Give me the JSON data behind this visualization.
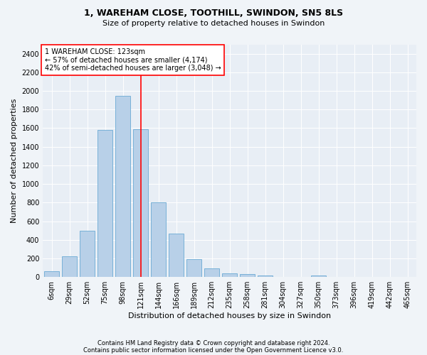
{
  "title1": "1, WAREHAM CLOSE, TOOTHILL, SWINDON, SN5 8LS",
  "title2": "Size of property relative to detached houses in Swindon",
  "xlabel": "Distribution of detached houses by size in Swindon",
  "ylabel": "Number of detached properties",
  "footer1": "Contains HM Land Registry data © Crown copyright and database right 2024.",
  "footer2": "Contains public sector information licensed under the Open Government Licence v3.0.",
  "bar_labels": [
    "6sqm",
    "29sqm",
    "52sqm",
    "75sqm",
    "98sqm",
    "121sqm",
    "144sqm",
    "166sqm",
    "189sqm",
    "212sqm",
    "235sqm",
    "258sqm",
    "281sqm",
    "304sqm",
    "327sqm",
    "350sqm",
    "373sqm",
    "396sqm",
    "419sqm",
    "442sqm",
    "465sqm"
  ],
  "bar_values": [
    60,
    225,
    500,
    1580,
    1950,
    1590,
    800,
    470,
    195,
    90,
    38,
    30,
    20,
    5,
    2,
    18,
    0,
    0,
    0,
    0,
    0
  ],
  "bar_color": "#b8d0e8",
  "bar_edge_color": "#6aaad4",
  "vline_x": 5,
  "vline_color": "red",
  "ylim": [
    0,
    2500
  ],
  "yticks": [
    0,
    200,
    400,
    600,
    800,
    1000,
    1200,
    1400,
    1600,
    1800,
    2000,
    2200,
    2400
  ],
  "annotation_text": "1 WAREHAM CLOSE: 123sqm\n← 57% of detached houses are smaller (4,174)\n42% of semi-detached houses are larger (3,048) →",
  "annotation_box_color": "white",
  "annotation_box_edge_color": "red",
  "bg_color": "#f0f4f8",
  "plot_bg_color": "#e8eef5",
  "title1_fontsize": 9,
  "title2_fontsize": 8,
  "xlabel_fontsize": 8,
  "ylabel_fontsize": 8,
  "tick_fontsize": 7,
  "annotation_fontsize": 7,
  "footer_fontsize": 6
}
